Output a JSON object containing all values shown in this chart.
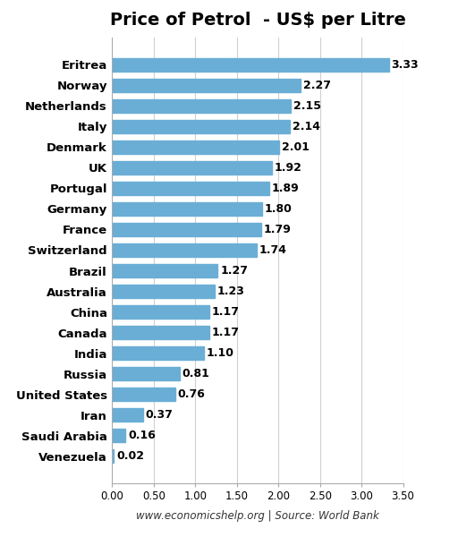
{
  "title": "Price of Petrol  - US$ per Litre",
  "countries": [
    "Venezuela",
    "Saudi Arabia",
    "Iran",
    "United States",
    "Russia",
    "India",
    "Canada",
    "China",
    "Australia",
    "Brazil",
    "Switzerland",
    "France",
    "Germany",
    "Portugal",
    "UK",
    "Denmark",
    "Italy",
    "Netherlands",
    "Norway",
    "Eritrea"
  ],
  "values": [
    0.02,
    0.16,
    0.37,
    0.76,
    0.81,
    1.1,
    1.17,
    1.17,
    1.23,
    1.27,
    1.74,
    1.79,
    1.8,
    1.89,
    1.92,
    2.01,
    2.14,
    2.15,
    2.27,
    3.33
  ],
  "bar_color": "#6aaed6",
  "xlabel": "www.economicshelp.org | Source: World Bank",
  "xlim": [
    0,
    3.5
  ],
  "xticks": [
    0.0,
    0.5,
    1.0,
    1.5,
    2.0,
    2.5,
    3.0,
    3.5
  ],
  "xtick_labels": [
    "0.00",
    "0.50",
    "1.00",
    "1.50",
    "2.00",
    "2.50",
    "3.00",
    "3.50"
  ],
  "background_color": "#ffffff",
  "grid_color": "#d0d0d0",
  "label_fontsize": 9.5,
  "title_fontsize": 14,
  "value_fontsize": 9
}
